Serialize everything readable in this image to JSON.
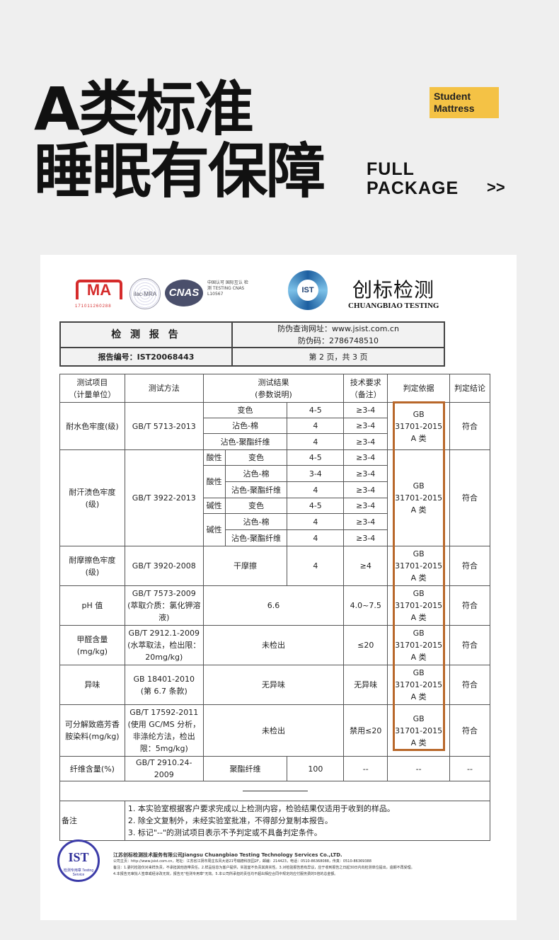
{
  "hero": {
    "line1": "A类标准",
    "line2": "睡眠有保障",
    "badge": "Student Mattress",
    "package": "FULL PACKAGE",
    "arrows": ">>"
  },
  "logos": {
    "cma": "MA",
    "cma_number": "171011260288",
    "ilac": "ilac-MRA",
    "cnas": "CNAS",
    "cnas_text": "中国认可 国际互认 检测 TESTING CNAS L10567",
    "ist": "IST",
    "brand_cn": "创标检测",
    "brand_en": "CHUANGBIAO TESTING"
  },
  "report": {
    "title": "检 测 报 告",
    "url": "防伪查询网址：www.jsist.com.cn",
    "code": "防伪码：2786748510",
    "number": "报告编号：IST20068443",
    "page": "第 2 页，共 3 页"
  },
  "headers": [
    "测试项目\n（计量单位）",
    "测试方法",
    "测试结果\n(参数说明)",
    "技术要求\n（备注）",
    "判定依据",
    "判定结论"
  ],
  "basis": "GB\n31701-2015\nA 类",
  "pass": "符合",
  "rows": {
    "water": {
      "item": "耐水色牢度(级)",
      "method": "GB/T 5713-2013",
      "sub": [
        [
          "变色",
          "4-5",
          "≥3-4"
        ],
        [
          "沾色-棉",
          "4",
          "≥3-4"
        ],
        [
          "沾色-聚酯纤维",
          "4",
          "≥3-4"
        ]
      ]
    },
    "sweat": {
      "item": "耐汗渍色牢度\n(级)",
      "method": "GB/T 3922-2013",
      "acid": "酸性",
      "alkali": "碱性",
      "sub": [
        [
          "变色",
          "4-5",
          "≥3-4"
        ],
        [
          "沾色-棉",
          "3-4",
          "≥3-4"
        ],
        [
          "沾色-聚酯纤维",
          "4",
          "≥3-4"
        ],
        [
          "变色",
          "4-5",
          "≥3-4"
        ],
        [
          "沾色-棉",
          "4",
          "≥3-4"
        ],
        [
          "沾色-聚酯纤维",
          "4",
          "≥3-4"
        ]
      ]
    },
    "rub": {
      "item": "耐摩擦色牢度\n(级)",
      "method": "GB/T 3920-2008",
      "desc": "干摩擦",
      "value": "4",
      "req": "≥4"
    },
    "ph": {
      "item": "pH 值",
      "method": "GB/T 7573-2009\n(萃取介质：氯化钾溶液)",
      "value": "6.6",
      "req": "4.0~7.5"
    },
    "form": {
      "item": "甲醛含量\n(mg/kg)",
      "method": "GB/T 2912.1-2009\n(水萃取法，检出限：20mg/kg)",
      "value": "未检出",
      "req": "≤20"
    },
    "odor": {
      "item": "异味",
      "method": "GB 18401-2010\n(第 6.7 条款)",
      "value": "无异味",
      "req": "无异味"
    },
    "amine": {
      "item": "可分解致癌芳香胺染料(mg/kg)",
      "method": "GB/T 17592-2011\n(使用 GC/MS 分析，非涤纶方法，检出限：5mg/kg)",
      "value": "未检出",
      "req": "禁用≤20"
    },
    "fiber": {
      "item": "纤维含量(%)",
      "method": "GB/T 2910.24-2009",
      "desc": "聚酯纤维",
      "value": "100",
      "req": "--",
      "basis": "--",
      "result": "--"
    }
  },
  "notes": {
    "label": "备注",
    "items": [
      "1.    本实验室根据客户要求完成以上检测内容，检验结果仅适用于收到的样品。",
      "2.    除全文复制外，未经实验室批准，不得部分复制本报告。",
      "3.    标记\"--\"的测试项目表示不予判定或不具备判定条件。"
    ]
  },
  "footer": {
    "seal": "IST",
    "seal_sub": "检测专用章 Testing Service",
    "company": "江苏创标检测技术服务有限公司Jiangsu Chuangbiao Testing Technology Services Co.,LTD.",
    "address": "公司主页：http://www.jsist.com.cn，地址：江苏省江阴市周庄东风大道21号瑞德科技园2F，邮编：214423，电话：0510-86368088，传真：0510-86369388",
    "note1": "备注：1.委托检验仅对来样负责，不承担其他连带责任。2.样品信息为客户提供，实验室不负责其真实性。3.对检验报告若有异议，应于收到报告之日起30日内向检测单位提出，逾期不再受理。",
    "note2": "4.本报告无审批人签章或经涂改无效，报告无\"检测专用章\"无效。5.本公司所承担的责任均不超出相应合同中规定的应付服务费的5倍的总金额。"
  }
}
